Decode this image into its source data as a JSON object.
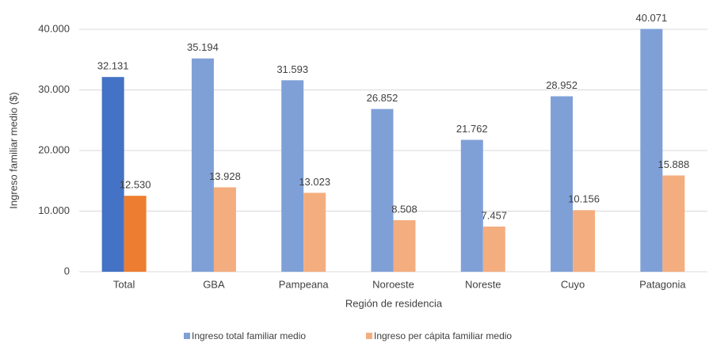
{
  "chart_data": {
    "type": "bar",
    "y_label": "Ingreso familiar medio ($)",
    "x_label": "Región de residencia",
    "categories": [
      "Total",
      "GBA",
      "Pampeana",
      "Noroeste",
      "Noreste",
      "Cuyo",
      "Patagonia"
    ],
    "series": [
      {
        "name": "Ingreso total familiar medio",
        "color": "#7fa0d7",
        "colors": [
          "#4472c4",
          "#7fa0d7",
          "#7fa0d7",
          "#7fa0d7",
          "#7fa0d7",
          "#7fa0d7",
          "#7fa0d7"
        ],
        "values": [
          32131,
          35194,
          31593,
          26852,
          21762,
          28952,
          40071
        ],
        "value_labels": [
          "32.131",
          "35.194",
          "31.593",
          "26.852",
          "21.762",
          "28.952",
          "40.071"
        ]
      },
      {
        "name": "Ingreso per cápita familiar medio",
        "color": "#f4ad7f",
        "colors": [
          "#ed7d31",
          "#f4ad7f",
          "#f4ad7f",
          "#f4ad7f",
          "#f4ad7f",
          "#f4ad7f",
          "#f4ad7f"
        ],
        "values": [
          12530,
          13928,
          13023,
          8508,
          7457,
          10156,
          15888
        ],
        "value_labels": [
          "12.530",
          "13.928",
          "13.023",
          "8.508",
          "7.457",
          "10.156",
          "15.888"
        ]
      }
    ],
    "ylim": [
      0,
      40000
    ],
    "yticks": [
      0,
      {
        "value": 10000,
        "label": "10.000"
      },
      {
        "value": 20000,
        "label": "20.000"
      },
      {
        "value": 30000,
        "label": "30.000"
      },
      {
        "value": 40000,
        "label": "40.000"
      }
    ],
    "grid": true,
    "legend": "bottom"
  }
}
